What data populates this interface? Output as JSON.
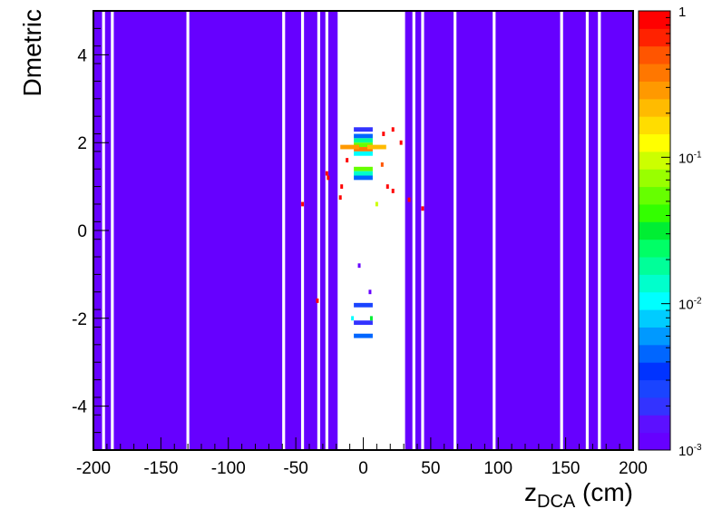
{
  "chart_data": {
    "type": "heatmap",
    "xlabel": "z",
    "xlabel_sub": "DCA",
    "xlabel_unit": " (cm)",
    "ylabel": "Dmetric",
    "xlim": [
      -200,
      200
    ],
    "ylim": [
      -5,
      5
    ],
    "x_ticks": [
      "-200",
      "-150",
      "-100",
      "-50",
      "0",
      "50",
      "100",
      "150",
      "200"
    ],
    "y_ticks": [
      "-4",
      "-2",
      "0",
      "2",
      "4"
    ],
    "z_scale": "log",
    "zlim": [
      0.001,
      1
    ],
    "colorbar_labels": [
      {
        "base": "10",
        "exp": "-3",
        "value": 0.001
      },
      {
        "base": "10",
        "exp": "-2",
        "value": 0.01
      },
      {
        "base": "10",
        "exp": "-1",
        "value": 0.1
      },
      {
        "base": "1",
        "exp": "",
        "value": 1
      }
    ],
    "background_fill_color": "#6600ff",
    "empty_color": "#ffffff",
    "empty_band": [
      -19,
      31
    ],
    "empty_columns_x": [
      -192.5,
      -186,
      -130,
      -59,
      -45,
      -33,
      -27,
      37.5,
      44,
      68,
      97,
      147,
      166,
      175
    ],
    "clusters": [
      {
        "x": 0,
        "y": 2.3,
        "value": 0.002
      },
      {
        "x": 0,
        "y": 2.15,
        "value": 0.004
      },
      {
        "x": 0,
        "y": 2.05,
        "value": 0.02
      },
      {
        "x": 0,
        "y": 1.95,
        "value": 0.06
      },
      {
        "x": 0,
        "y": 1.85,
        "value": 0.4
      },
      {
        "x": -10,
        "y": 1.9,
        "value": 0.3
      },
      {
        "x": 10,
        "y": 1.9,
        "value": 0.25
      },
      {
        "x": 0,
        "y": 1.75,
        "value": 0.01
      },
      {
        "x": 0,
        "y": 1.4,
        "value": 0.06
      },
      {
        "x": 0,
        "y": 1.3,
        "value": 0.015
      },
      {
        "x": 0,
        "y": 1.2,
        "value": 0.005
      },
      {
        "x": 0,
        "y": -1.7,
        "value": 0.003
      },
      {
        "x": 0,
        "y": -2.1,
        "value": 0.002
      },
      {
        "x": 0,
        "y": -2.4,
        "value": 0.004
      }
    ],
    "scatter_points": [
      {
        "x": 15,
        "y": 2.2,
        "value": 1
      },
      {
        "x": 22,
        "y": 2.3,
        "value": 1
      },
      {
        "x": 28,
        "y": 2.0,
        "value": 1
      },
      {
        "x": -12,
        "y": 1.6,
        "value": 1
      },
      {
        "x": 14,
        "y": 1.5,
        "value": 0.5
      },
      {
        "x": -27,
        "y": 1.3,
        "value": 1
      },
      {
        "x": -26,
        "y": 1.2,
        "value": 1
      },
      {
        "x": -16,
        "y": 1.0,
        "value": 1
      },
      {
        "x": 18,
        "y": 1.0,
        "value": 1
      },
      {
        "x": 22,
        "y": 0.9,
        "value": 1
      },
      {
        "x": -45,
        "y": 0.6,
        "value": 1
      },
      {
        "x": -17,
        "y": 0.75,
        "value": 1
      },
      {
        "x": 34,
        "y": 0.7,
        "value": 1
      },
      {
        "x": 44,
        "y": 0.5,
        "value": 1
      },
      {
        "x": 10,
        "y": 0.6,
        "value": 0.1
      },
      {
        "x": -3,
        "y": -0.8,
        "value": 0.001
      },
      {
        "x": -34,
        "y": -1.6,
        "value": 1
      },
      {
        "x": 5,
        "y": -1.4,
        "value": 0.001
      },
      {
        "x": 6,
        "y": -2.0,
        "value": 0.03
      },
      {
        "x": -8,
        "y": -2.0,
        "value": 0.01
      }
    ]
  }
}
